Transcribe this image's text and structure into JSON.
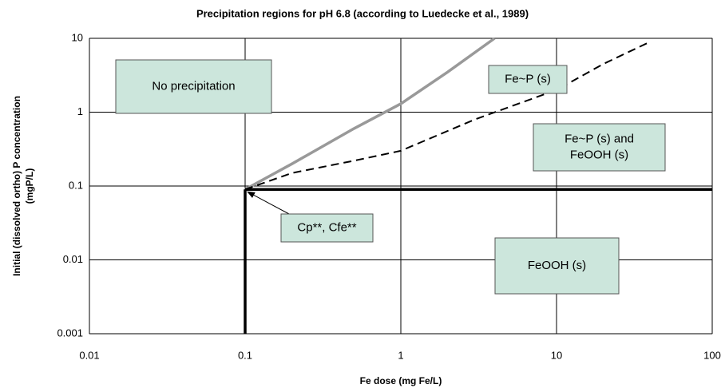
{
  "chart_data": {
    "type": "line",
    "title": "Precipitation regions for pH 6.8 (according to Luedecke et al., 1989)",
    "xlabel": "Fe dose (mg Fe/L)",
    "ylabel": [
      "Initial (dissolved ortho) P concentration",
      "(mgP/L)"
    ],
    "xscale": "log",
    "yscale": "log",
    "xlim": [
      0.01,
      100
    ],
    "ylim": [
      0.001,
      10
    ],
    "xticks": [
      0.01,
      0.1,
      1,
      10,
      100
    ],
    "yticks": [
      0.001,
      0.01,
      0.1,
      1,
      10
    ],
    "grid": true,
    "series": [
      {
        "color": "#999999",
        "dashed": false,
        "width": 3.5,
        "x": [
          0.1,
          0.2,
          0.5,
          1,
          2,
          4
        ],
        "values": [
          0.09,
          0.2,
          0.6,
          1.3,
          3.5,
          10
        ]
      },
      {
        "color": "#000000",
        "dashed": true,
        "width": 2,
        "x": [
          0.1,
          0.2,
          0.5,
          1,
          3,
          10,
          20,
          40
        ],
        "values": [
          0.09,
          0.15,
          0.22,
          0.3,
          0.8,
          2,
          4.5,
          9
        ]
      },
      {
        "color": "#000000",
        "dashed": false,
        "width": 3.5,
        "x": [
          0.1,
          100
        ],
        "values": [
          0.09,
          0.09
        ]
      },
      {
        "color": "#000000",
        "dashed": false,
        "width": 3.5,
        "x": [
          0.1,
          0.1
        ],
        "values": [
          0.001,
          0.09
        ]
      }
    ],
    "annotations": [
      {
        "text": [
          "No precipitation"
        ]
      },
      {
        "text": [
          "Fe~P (s)"
        ]
      },
      {
        "text": [
          "Fe~P (s) and",
          "FeOOH (s)"
        ]
      },
      {
        "text": [
          "Cp**, Cfe**"
        ],
        "arrow_to": [
          0.1,
          0.09
        ]
      },
      {
        "text": [
          "FeOOH (s)"
        ]
      }
    ]
  }
}
